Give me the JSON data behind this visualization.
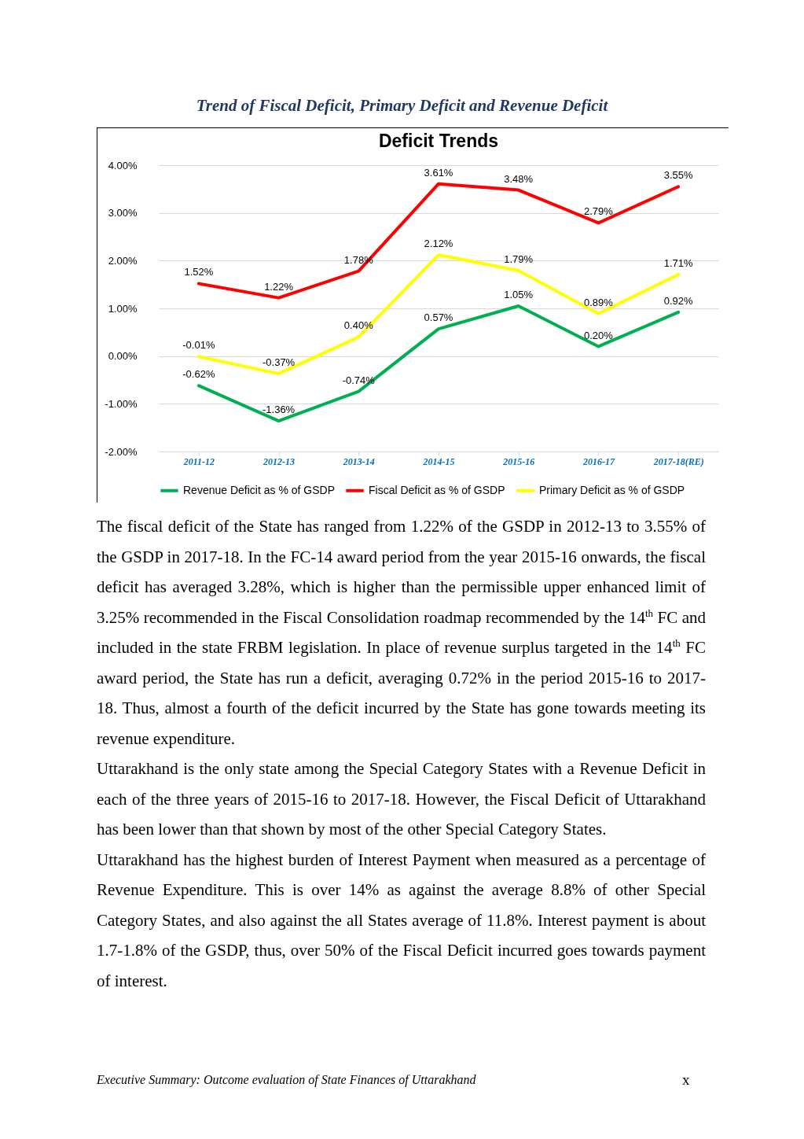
{
  "chart_data": {
    "type": "line",
    "title": "Deficit Trends",
    "categories": [
      "2011-12",
      "2012-13",
      "2013-14",
      "2014-15",
      "2015-16",
      "2016-17",
      "2017-18(RE)"
    ],
    "series": [
      {
        "name": "Revenue Deficit as % of GSDP",
        "color": "#00b050",
        "values": [
          -0.62,
          -1.36,
          -0.74,
          0.57,
          1.05,
          0.2,
          0.92
        ],
        "value_labels": [
          "-0.62%",
          "-1.36%",
          "-0.74%",
          "0.57%",
          "1.05%",
          "0.20%",
          "0.92%"
        ]
      },
      {
        "name": "Fiscal Deficit as % of GSDP",
        "color": "#ff0000",
        "values": [
          1.52,
          1.22,
          1.78,
          3.61,
          3.48,
          2.79,
          3.55
        ],
        "value_labels": [
          "1.52%",
          "1.22%",
          "1.78%",
          "3.61%",
          "3.48%",
          "2.79%",
          "3.55%"
        ]
      },
      {
        "name": "Primary Deficit as % of GSDP",
        "color": "#ffff00",
        "values": [
          -0.01,
          -0.37,
          0.4,
          2.12,
          1.79,
          0.89,
          1.71
        ],
        "value_labels": [
          "-0.01%",
          "-0.37%",
          "0.40%",
          "2.12%",
          "1.79%",
          "0.89%",
          "1.71%"
        ]
      }
    ],
    "ylim": [
      -2,
      4
    ],
    "yticks": [
      {
        "value": -2,
        "label": "-2.00%"
      },
      {
        "value": -1,
        "label": "-1.00%"
      },
      {
        "value": 0,
        "label": "0.00%"
      },
      {
        "value": 1,
        "label": "1.00%"
      },
      {
        "value": 2,
        "label": "2.00%"
      },
      {
        "value": 3,
        "label": "3.00%"
      },
      {
        "value": 4,
        "label": "4.00%"
      }
    ],
    "grid": "y",
    "legend": "bottom",
    "annotations": [
      "Trend of Fiscal Deficit, Primary Deficit and Revenue Deficit",
      "The fiscal deficit of the State has ranged from 1.22% of the GSDP in 2012-13 to 3.55% of the GSDP in 2017-18. In the FC-14 award period from the year 2015-16 onwards, the fiscal deficit has averaged 3.28%, which is higher than the permissible upper enhanced limit of 3.25% recommended in the Fiscal Consolidation roadmap recommended by the 14$^{th}$ FC and included in the state FRBM legislation. In place of revenue surplus targeted in the 14$^{th}$ FC award period, the State has run a deficit, averaging 0.72% in the period 2015-16 to 2017-18. Thus, almost a fourth of the deficit incurred by the State has gone towards meeting its revenue expenditure.",
      "Uttarakhand is the only state among the Special Category States with a Revenue Deficit in each of the three years of 2015-16 to 2017-18. However, the Fiscal Deficit of Uttarakhand has been lower than that shown by most of the other Special Category States.",
      "Uttarakhand has the highest burden of Interest Payment when measured as a percentage of Revenue Expenditure. This is over 14% as against the average 8.8% of other Special Category States, and also against the all States average of 11.8%. Interest payment is about 1.7-1.8% of the GSDP, thus, over 50% of the Fiscal Deficit incurred goes towards payment of interest.",
      "Executive Summary: Outcome evaluation of State Finances of Uttarakhand",
      "x"
    ]
  }
}
